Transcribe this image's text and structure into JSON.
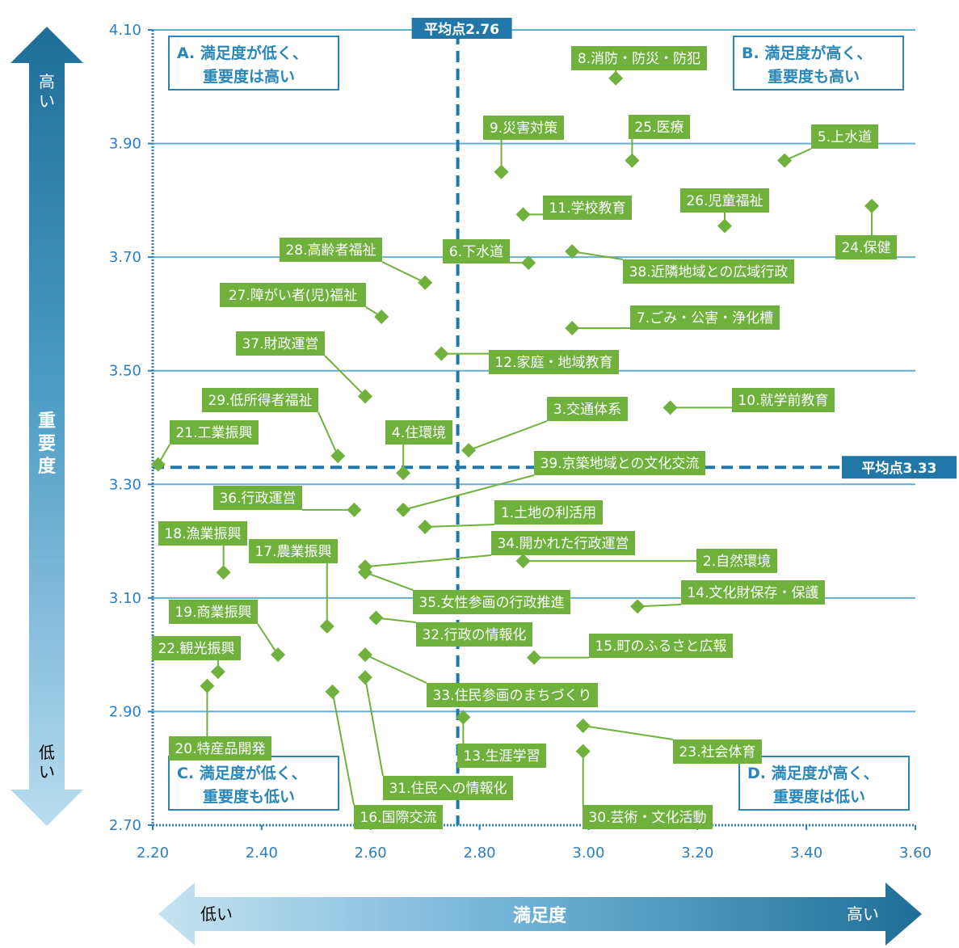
{
  "chart_data": {
    "type": "scatter",
    "xlim": [
      2.2,
      3.6
    ],
    "ylim": [
      2.7,
      4.1
    ],
    "x_ticks": [
      "2.20",
      "2.40",
      "2.60",
      "2.80",
      "3.00",
      "3.20",
      "3.40",
      "3.60"
    ],
    "y_ticks": [
      "4.10",
      "3.90",
      "3.70",
      "3.50",
      "3.30",
      "3.10",
      "2.90",
      "2.70"
    ],
    "grid": "horizontal",
    "x_axis": {
      "title": "満足度",
      "low": "低い",
      "high": "高い"
    },
    "y_axis": {
      "title": "重要度",
      "low": "低い",
      "high": "高い"
    },
    "avg_x": {
      "value": 2.76,
      "label": "平均点2.76"
    },
    "avg_y": {
      "value": 3.33,
      "label": "平均点3.33"
    },
    "quadrants": [
      {
        "id": "A",
        "line1": "A. 満足度が低く、",
        "line2": "重要度は高い"
      },
      {
        "id": "B",
        "line1": "B. 満足度が高く、",
        "line2": "重要度も高い"
      },
      {
        "id": "C",
        "line1": "C. 満足度が低く、",
        "line2": "重要度も低い"
      },
      {
        "id": "D",
        "line1": "D. 満足度が高く、",
        "line2": "重要度は低い"
      }
    ],
    "points": [
      {
        "label": "1.土地の利活用",
        "x": 2.7,
        "y": 3.225
      },
      {
        "label": "2.自然環境",
        "x": 2.88,
        "y": 3.165
      },
      {
        "label": "3.交通体系",
        "x": 2.78,
        "y": 3.36
      },
      {
        "label": "4.住環境",
        "x": 2.66,
        "y": 3.32
      },
      {
        "label": "5.上水道",
        "x": 3.36,
        "y": 3.87
      },
      {
        "label": "6.下水道",
        "x": 2.89,
        "y": 3.69
      },
      {
        "label": "7.ごみ・公害・浄化槽",
        "x": 2.97,
        "y": 3.575
      },
      {
        "label": "8.消防・防災・防犯",
        "x": 3.05,
        "y": 4.015
      },
      {
        "label": "9.災害対策",
        "x": 2.84,
        "y": 3.85
      },
      {
        "label": "10.就学前教育",
        "x": 3.15,
        "y": 3.435
      },
      {
        "label": "11.学校教育",
        "x": 2.88,
        "y": 3.775
      },
      {
        "label": "12.家庭・地域教育",
        "x": 2.73,
        "y": 3.53
      },
      {
        "label": "13.生涯学習",
        "x": 2.77,
        "y": 2.89
      },
      {
        "label": "14.文化財保存・保護",
        "x": 3.09,
        "y": 3.085
      },
      {
        "label": "15.町のふるさと広報",
        "x": 2.9,
        "y": 2.995
      },
      {
        "label": "16.国際交流",
        "x": 2.53,
        "y": 2.935
      },
      {
        "label": "17.農業振興",
        "x": 2.52,
        "y": 3.05
      },
      {
        "label": "18.漁業振興",
        "x": 2.33,
        "y": 3.145
      },
      {
        "label": "19.商業振興",
        "x": 2.43,
        "y": 3.0
      },
      {
        "label": "20.特産品開発",
        "x": 2.3,
        "y": 2.945
      },
      {
        "label": "21.工業振興",
        "x": 2.21,
        "y": 3.335
      },
      {
        "label": "22.観光振興",
        "x": 2.32,
        "y": 2.97
      },
      {
        "label": "23.社会体育",
        "x": 2.99,
        "y": 2.875
      },
      {
        "label": "24.保健",
        "x": 3.52,
        "y": 3.79
      },
      {
        "label": "25.医療",
        "x": 3.08,
        "y": 3.87
      },
      {
        "label": "26.児童福祉",
        "x": 3.25,
        "y": 3.755
      },
      {
        "label": "27.障がい者(児)福祉",
        "x": 2.62,
        "y": 3.595
      },
      {
        "label": "28.高齢者福祉",
        "x": 2.7,
        "y": 3.655
      },
      {
        "label": "29.低所得者福祉",
        "x": 2.54,
        "y": 3.35
      },
      {
        "label": "30.芸術・文化活動",
        "x": 2.99,
        "y": 2.83
      },
      {
        "label": "31.住民への情報化",
        "x": 2.59,
        "y": 2.96
      },
      {
        "label": "32.行政の情報化",
        "x": 2.61,
        "y": 3.065
      },
      {
        "label": "33.住民参画のまちづくり",
        "x": 2.59,
        "y": 3.0
      },
      {
        "label": "34.開かれた行政運営",
        "x": 2.59,
        "y": 3.155
      },
      {
        "label": "35.女性参画の行政推進",
        "x": 2.59,
        "y": 3.145
      },
      {
        "label": "36.行政運営",
        "x": 2.57,
        "y": 3.255
      },
      {
        "label": "37.財政運営",
        "x": 2.59,
        "y": 3.455
      },
      {
        "label": "38.近隣地域との広域行政",
        "x": 2.97,
        "y": 3.71
      },
      {
        "label": "39.京築地域との文化交流",
        "x": 2.66,
        "y": 3.255
      }
    ]
  }
}
